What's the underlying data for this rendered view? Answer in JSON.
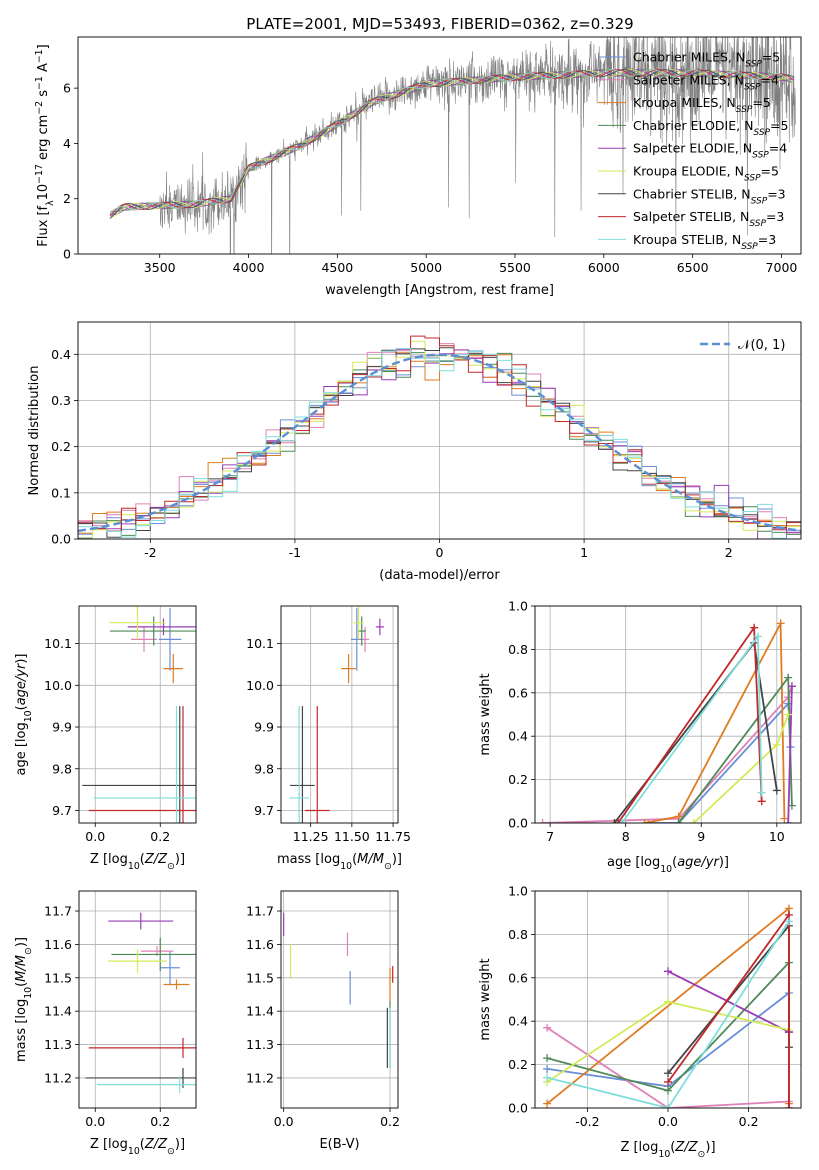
{
  "title": "PLATE=2001, MJD=53493, FIBERID=0362, z=0.329",
  "models": [
    {
      "name": "Chabrier MILES",
      "n": "5",
      "color": "#6a8fd8"
    },
    {
      "name": "Salpeter MILES",
      "n": "4",
      "color": "#e080b8"
    },
    {
      "name": "Kroupa MILES",
      "n": "5",
      "color": "#e07b22"
    },
    {
      "name": "Chabrier ELODIE",
      "n": "5",
      "color": "#4e8a56"
    },
    {
      "name": "Salpeter ELODIE",
      "n": "4",
      "color": "#9a3cb8"
    },
    {
      "name": "Kroupa ELODIE",
      "n": "5",
      "color": "#d2ea5a"
    },
    {
      "name": "Chabrier STELIB",
      "n": "3",
      "color": "#444444"
    },
    {
      "name": "Salpeter STELIB",
      "n": "3",
      "color": "#c0282c"
    },
    {
      "name": "Kroupa STELIB",
      "n": "3",
      "color": "#7fdedc"
    }
  ],
  "chart_data": [
    {
      "id": "spectrum",
      "type": "line",
      "xlabel": "wavelength [Angstrom, rest frame]",
      "ylabel": "Flux [f_λ 10^-17 erg cm^-2 s^-1 A^-1]",
      "xlim": [
        3040,
        7110
      ],
      "ylim": [
        0,
        7.85
      ],
      "xticks": [
        3500,
        4000,
        4500,
        5000,
        5500,
        6000,
        6500,
        7000
      ],
      "yticks": [
        0,
        2,
        4,
        6
      ],
      "legend": "top-right",
      "grid": false,
      "data_color": "#808080",
      "continuum": [
        [
          3220,
          1.4
        ],
        [
          3300,
          1.7
        ],
        [
          3500,
          1.75
        ],
        [
          3700,
          1.8
        ],
        [
          3900,
          2.0
        ],
        [
          4000,
          3.1
        ],
        [
          4300,
          3.95
        ],
        [
          4500,
          4.7
        ],
        [
          4700,
          5.5
        ],
        [
          5000,
          6.15
        ],
        [
          5500,
          6.4
        ],
        [
          6000,
          6.55
        ],
        [
          6500,
          6.55
        ],
        [
          7000,
          6.4
        ],
        [
          7080,
          6.3
        ]
      ]
    },
    {
      "id": "residuals",
      "type": "bar",
      "xlabel": "(data-model)/error",
      "ylabel": "Normed distribution",
      "xlim": [
        -2.5,
        2.5
      ],
      "ylim": [
        0,
        0.47
      ],
      "xticks": [
        -2,
        -1,
        0,
        1,
        2
      ],
      "yticks": [
        0.0,
        0.1,
        0.2,
        0.3,
        0.4
      ],
      "grid": true,
      "legend": "top-right",
      "reference": {
        "name": "𝒩(0, 1)",
        "color": "#5a8fd6"
      },
      "bins": {
        "start": -2.5,
        "width": 0.1,
        "count": 50
      }
    },
    {
      "id": "age_vs_Z",
      "type": "scatter",
      "xlabel": "Z [log10(Z/Z⊙)]",
      "ylabel": "age  [log10(age/yr)]",
      "xlim": [
        -0.05,
        0.31
      ],
      "ylim": [
        9.67,
        10.19
      ],
      "xticks": [
        0.0,
        0.2
      ],
      "yticks": [
        9.7,
        9.8,
        9.9,
        10.0,
        10.1
      ],
      "grid": true,
      "points": [
        {
          "x": 0.23,
          "xerr": 0.07,
          "y": 10.11,
          "yerr": 0.15,
          "m": 0
        },
        {
          "x": 0.15,
          "xerr": 0.08,
          "y": 10.11,
          "yerr": 0.06,
          "m": 1
        },
        {
          "x": 0.24,
          "xerr": 0.06,
          "y": 10.04,
          "yerr": 0.07,
          "m": 2
        },
        {
          "x": 0.18,
          "xerr": 0.27,
          "y": 10.13,
          "yerr": 0.07,
          "m": 3
        },
        {
          "x": 0.21,
          "xerr": 0.22,
          "y": 10.14,
          "yerr": 0.04,
          "m": 4
        },
        {
          "x": 0.13,
          "xerr": 0.17,
          "y": 10.15,
          "yerr": 0.08,
          "m": 5
        },
        {
          "x": 0.26,
          "xerr": 0.6,
          "y": 9.76,
          "yerr": 0.38,
          "m": 6
        },
        {
          "x": 0.27,
          "xerr": 0.58,
          "y": 9.7,
          "yerr": 0.5,
          "m": 7
        },
        {
          "x": 0.25,
          "xerr": 0.51,
          "y": 9.73,
          "yerr": 0.44,
          "m": 8
        }
      ]
    },
    {
      "id": "age_vs_mass",
      "type": "scatter",
      "xlabel": "mass [log10(M/M⊙)]",
      "ylabel": "",
      "xlim": [
        11.07,
        11.78
      ],
      "ylim": [
        9.67,
        10.19
      ],
      "xticks": [
        11.25,
        11.5,
        11.75
      ],
      "yticks": [
        9.7,
        9.8,
        9.9,
        10.0,
        10.1
      ],
      "grid": true,
      "points": [
        {
          "x": 11.53,
          "xerr": 0.07,
          "y": 10.11,
          "yerr": 0.15,
          "m": 0
        },
        {
          "x": 11.58,
          "xerr": 0.05,
          "y": 10.11,
          "yerr": 0.06,
          "m": 1
        },
        {
          "x": 11.48,
          "xerr": 0.09,
          "y": 10.04,
          "yerr": 0.07,
          "m": 2
        },
        {
          "x": 11.56,
          "xerr": 0.05,
          "y": 10.13,
          "yerr": 0.07,
          "m": 3
        },
        {
          "x": 11.67,
          "xerr": 0.05,
          "y": 10.14,
          "yerr": 0.04,
          "m": 4
        },
        {
          "x": 11.54,
          "xerr": 0.06,
          "y": 10.15,
          "yerr": 0.08,
          "m": 5
        },
        {
          "x": 11.2,
          "xerr": 0.15,
          "y": 9.76,
          "yerr": 0.38,
          "m": 6
        },
        {
          "x": 11.29,
          "xerr": 0.15,
          "y": 9.7,
          "yerr": 0.5,
          "m": 7
        },
        {
          "x": 11.18,
          "xerr": 0.12,
          "y": 9.73,
          "yerr": 0.44,
          "m": 8
        }
      ]
    },
    {
      "id": "mass_weight_vs_age",
      "type": "line",
      "xlabel": "age  [log10(age/yr)]",
      "ylabel": "mass weight",
      "xlim": [
        6.8,
        10.32
      ],
      "ylim": [
        0,
        1.0
      ],
      "xticks": [
        7,
        8,
        9,
        10
      ],
      "yticks": [
        0.0,
        0.2,
        0.4,
        0.6,
        0.8,
        1.0
      ],
      "grid": true,
      "series": [
        {
          "m": 0,
          "x": [
            8.3,
            8.7,
            10.15,
            10.18
          ],
          "y": [
            0.0,
            0.0,
            0.55,
            0.35
          ]
        },
        {
          "m": 1,
          "x": [
            6.9,
            8.7,
            10.15,
            10.2
          ],
          "y": [
            0.0,
            0.02,
            0.58,
            0.63
          ]
        },
        {
          "m": 2,
          "x": [
            8.25,
            8.7,
            10.05,
            10.1
          ],
          "y": [
            0.0,
            0.03,
            0.92,
            0.02
          ]
        },
        {
          "m": 3,
          "x": [
            8.7,
            10.15,
            10.2
          ],
          "y": [
            0.0,
            0.67,
            0.08
          ]
        },
        {
          "m": 4,
          "x": [
            10.15,
            10.2
          ],
          "y": [
            0.0,
            0.63
          ]
        },
        {
          "m": 5,
          "x": [
            8.9,
            10.0,
            10.15
          ],
          "y": [
            0.0,
            0.36,
            0.5
          ]
        },
        {
          "m": 6,
          "x": [
            7.85,
            9.7,
            10.0
          ],
          "y": [
            0.0,
            0.83,
            0.15
          ]
        },
        {
          "m": 7,
          "x": [
            7.9,
            9.7,
            9.8
          ],
          "y": [
            0.0,
            0.9,
            0.1
          ]
        },
        {
          "m": 8,
          "x": [
            7.95,
            9.75,
            9.8
          ],
          "y": [
            0.0,
            0.86,
            0.14
          ]
        }
      ]
    },
    {
      "id": "mass_vs_Z",
      "type": "scatter",
      "xlabel": "Z [log10(Z/Z⊙)]",
      "ylabel": "mass [log10(M/M⊙)]",
      "xlim": [
        -0.05,
        0.31
      ],
      "ylim": [
        11.11,
        11.76
      ],
      "xticks": [
        0.0,
        0.2
      ],
      "yticks": [
        11.2,
        11.3,
        11.4,
        11.5,
        11.6,
        11.7
      ],
      "grid": true,
      "points": [
        {
          "x": 0.23,
          "xerr": 0.06,
          "y": 11.53,
          "yerr": 0.1,
          "m": 0
        },
        {
          "x": 0.19,
          "xerr": 0.1,
          "y": 11.58,
          "yerr": 0.03,
          "m": 1
        },
        {
          "x": 0.25,
          "xerr": 0.08,
          "y": 11.48,
          "yerr": 0.03,
          "m": 2
        },
        {
          "x": 0.2,
          "xerr": 0.3,
          "y": 11.57,
          "yerr": 0.1,
          "m": 3
        },
        {
          "x": 0.14,
          "xerr": 0.2,
          "y": 11.67,
          "yerr": 0.05,
          "m": 4
        },
        {
          "x": 0.13,
          "xerr": 0.18,
          "y": 11.55,
          "yerr": 0.07,
          "m": 5
        },
        {
          "x": 0.27,
          "xerr": 0.6,
          "y": 11.2,
          "yerr": 0.06,
          "m": 6
        },
        {
          "x": 0.27,
          "xerr": 0.58,
          "y": 11.29,
          "yerr": 0.06,
          "m": 7
        },
        {
          "x": 0.26,
          "xerr": 0.51,
          "y": 11.18,
          "yerr": 0.05,
          "m": 8
        }
      ]
    },
    {
      "id": "mass_vs_EBV",
      "type": "scatter",
      "xlabel": "E(B-V)",
      "ylabel": "",
      "xlim": [
        -0.005,
        0.215
      ],
      "ylim": [
        11.11,
        11.76
      ],
      "xticks": [
        0.0,
        0.2
      ],
      "yticks": [
        11.2,
        11.3,
        11.4,
        11.5,
        11.6,
        11.7
      ],
      "grid": true,
      "points": [
        {
          "x": 0.125,
          "y": 11.47,
          "yerr": 0.1,
          "m": 0
        },
        {
          "x": 0.12,
          "y": 11.6,
          "yerr": 0.07,
          "m": 1
        },
        {
          "x": 0.2,
          "y": 11.48,
          "yerr": 0.1,
          "m": 2
        },
        {
          "x": 0.2,
          "y": 11.33,
          "yerr": 0.2,
          "m": 3
        },
        {
          "x": 0.0,
          "y": 11.66,
          "yerr": 0.07,
          "m": 4
        },
        {
          "x": 0.013,
          "y": 11.55,
          "yerr": 0.1,
          "m": 5
        },
        {
          "x": 0.195,
          "y": 11.32,
          "yerr": 0.18,
          "m": 6
        },
        {
          "x": 0.205,
          "y": 11.51,
          "yerr": 0.05,
          "m": 7
        },
        {
          "x": 0.2,
          "y": 11.32,
          "yerr": 0.18,
          "m": 8
        }
      ]
    },
    {
      "id": "mass_weight_vs_Z",
      "type": "line",
      "xlabel": "Z [log10(Z/Z⊙)]",
      "ylabel": "mass weight",
      "xlim": [
        -0.33,
        0.33
      ],
      "ylim": [
        0,
        1.0
      ],
      "xticks": [
        -0.2,
        0.0,
        0.2
      ],
      "yticks": [
        0.0,
        0.2,
        0.4,
        0.6,
        0.8,
        1.0
      ],
      "grid": true,
      "series": [
        {
          "m": 0,
          "x": [
            -0.3,
            0.0,
            0.3,
            0.3
          ],
          "y": [
            0.18,
            0.1,
            0.53,
            0.35
          ]
        },
        {
          "m": 1,
          "x": [
            -0.3,
            0.0,
            0.0,
            0.3
          ],
          "y": [
            0.37,
            0.0,
            0.0,
            0.03
          ]
        },
        {
          "m": 2,
          "x": [
            -0.3,
            0.3,
            0.3
          ],
          "y": [
            0.02,
            0.92,
            0.02
          ]
        },
        {
          "m": 3,
          "x": [
            -0.3,
            0.0,
            0.3,
            0.3
          ],
          "y": [
            0.23,
            0.08,
            0.67,
            0.35
          ]
        },
        {
          "m": 4,
          "x": [
            0.0,
            0.3,
            0.3
          ],
          "y": [
            0.63,
            0.35,
            0.0
          ]
        },
        {
          "m": 5,
          "x": [
            -0.3,
            0.0,
            0.3
          ],
          "y": [
            0.12,
            0.49,
            0.36
          ]
        },
        {
          "m": 6,
          "x": [
            0.0,
            0.3,
            0.3
          ],
          "y": [
            0.16,
            0.84,
            0.28
          ]
        },
        {
          "m": 7,
          "x": [
            0.0,
            0.3,
            0.3
          ],
          "y": [
            0.12,
            0.89,
            0.0
          ]
        },
        {
          "m": 8,
          "x": [
            -0.3,
            0.0,
            0.3
          ],
          "y": [
            0.14,
            0.0,
            0.86
          ]
        }
      ]
    }
  ]
}
